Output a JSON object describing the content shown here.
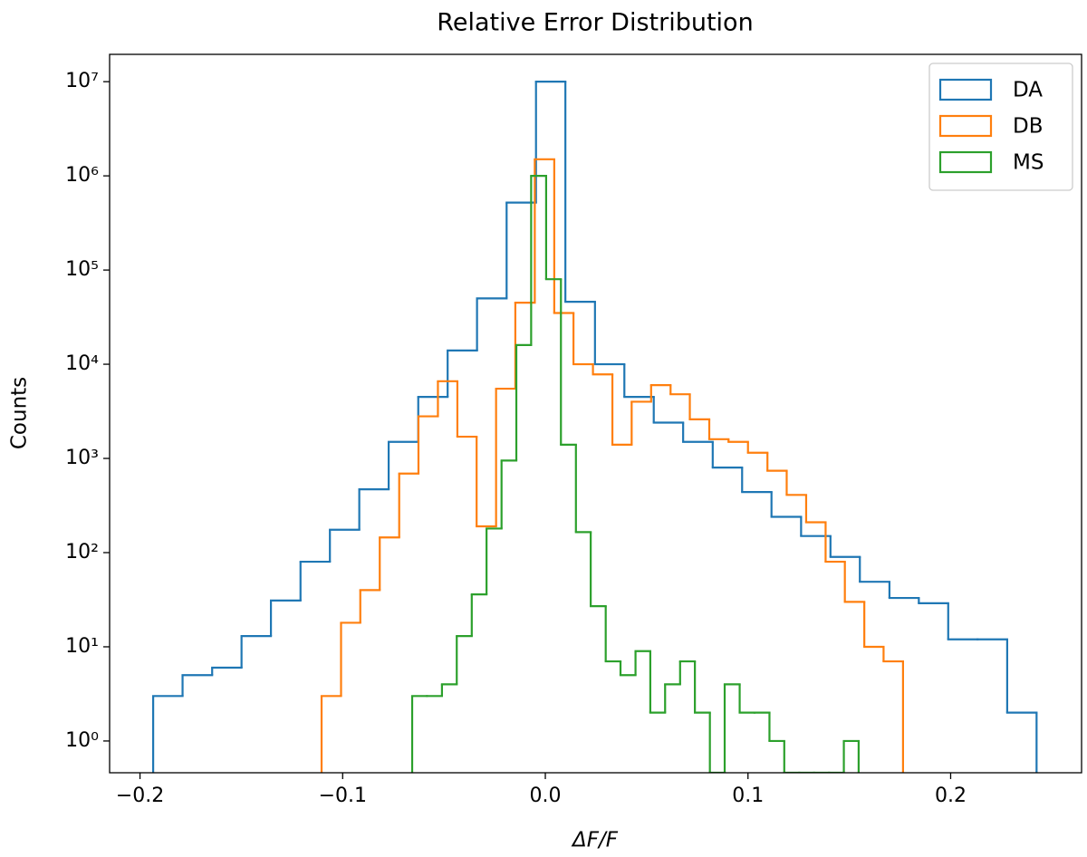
{
  "chart_data": {
    "type": "histogram",
    "title": "Relative Error Distribution",
    "x_label": "ΔF/F",
    "y_label": "Counts",
    "log_y": true,
    "legend": "upper right",
    "xlim": [
      -0.215,
      0.2646
    ],
    "ylim": [
      0.46,
      19500000
    ],
    "xticks": [
      {
        "value": -0.2,
        "label": "−0.2"
      },
      {
        "value": -0.1,
        "label": "−0.1"
      },
      {
        "value": 0,
        "label": "0.0"
      },
      0.1,
      0.2
    ],
    "yticks": [
      {
        "value": 1,
        "label": "10⁰"
      },
      {
        "value": 10,
        "label": "10¹"
      },
      {
        "value": 100,
        "label": "10²"
      },
      {
        "value": 1000,
        "label": "10³"
      },
      {
        "value": 10000,
        "label": "10⁴"
      },
      {
        "value": 100000,
        "label": "10⁵"
      },
      {
        "value": 1000000,
        "label": "10⁶"
      },
      {
        "value": 10000000,
        "label": "10⁷"
      }
    ],
    "series": [
      {
        "name": "DA",
        "color": "#1f77b4",
        "bins": [
          -0.1935,
          -0.179,
          -0.1644,
          -0.1499,
          -0.1354,
          -0.1208,
          -0.1063,
          -0.0918,
          -0.0773,
          -0.0627,
          -0.0482,
          -0.0337,
          -0.0191,
          -0.0046,
          0.0099,
          0.0245,
          0.039,
          0.0535,
          0.068,
          0.0826,
          0.0971,
          0.1116,
          0.1262,
          0.1407,
          0.1552,
          0.1698,
          0.1843,
          0.1988,
          0.2133,
          0.2279,
          0.2424
        ],
        "values": [
          3,
          5,
          6,
          13,
          31,
          80,
          175,
          470,
          1500,
          4500,
          14000,
          50000,
          520000,
          10000000,
          46000,
          10000,
          4500,
          2400,
          1500,
          800,
          440,
          240,
          150,
          90,
          49,
          33,
          29,
          12,
          12,
          2
        ]
      },
      {
        "name": "DB",
        "color": "#ff7f0e",
        "bins": [
          -0.1104,
          -0.1008,
          -0.0913,
          -0.0817,
          -0.0721,
          -0.0626,
          -0.053,
          -0.0434,
          -0.0339,
          -0.0243,
          -0.0148,
          -0.0052,
          0.0044,
          0.0139,
          0.0235,
          0.0331,
          0.0426,
          0.0522,
          0.0618,
          0.0713,
          0.0809,
          0.0904,
          0.1,
          0.1096,
          0.1191,
          0.1287,
          0.1383,
          0.1478,
          0.1574,
          0.1669,
          0.1765
        ],
        "values": [
          3,
          18,
          40,
          145,
          690,
          2800,
          6600,
          1700,
          190,
          5500,
          45000,
          1500000,
          35000,
          10000,
          7800,
          1400,
          4000,
          6000,
          4800,
          2600,
          1600,
          1500,
          1150,
          740,
          410,
          210,
          80,
          30,
          10,
          7
        ]
      },
      {
        "name": "MS",
        "color": "#2ca02c",
        "bins": [
          -0.0657,
          -0.0584,
          -0.051,
          -0.0437,
          -0.0363,
          -0.029,
          -0.0216,
          -0.0143,
          -0.007,
          0.0004,
          0.0077,
          0.0151,
          0.0224,
          0.0298,
          0.0371,
          0.0445,
          0.0518,
          0.0591,
          0.0665,
          0.0738,
          0.0812,
          0.0885,
          0.0959,
          0.1032,
          0.1106,
          0.1179,
          0.1253,
          0.1326,
          0.14,
          0.1473,
          0.1546
        ],
        "values": [
          3,
          3,
          4,
          13,
          36,
          180,
          950,
          16000,
          1000000,
          80000,
          1400,
          165,
          27,
          7,
          5,
          9,
          2,
          4,
          7,
          2,
          0,
          4,
          2,
          2,
          1,
          0,
          0,
          0,
          0,
          1
        ]
      }
    ]
  }
}
